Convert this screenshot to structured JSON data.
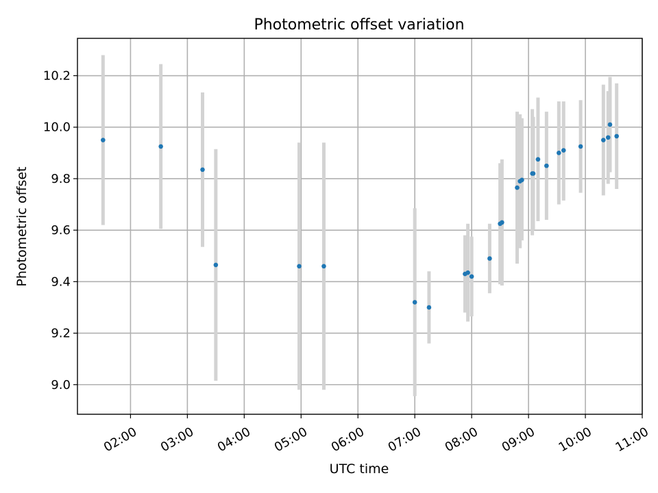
{
  "chart_data": {
    "type": "scatter",
    "title": "Photometric offset variation",
    "xlabel": "UTC time",
    "ylabel": "Photometric offset",
    "grid": true,
    "error_bars": true,
    "colors": {
      "marker": "#1f77b4",
      "error_bar": "#d3d3d3",
      "grid": "#b0b0b0"
    },
    "xlim": [
      "01:04",
      "11:00"
    ],
    "ylim": [
      8.885,
      10.345
    ],
    "x_ticks": [
      "02:00",
      "03:00",
      "04:00",
      "05:00",
      "06:00",
      "07:00",
      "08:00",
      "09:00",
      "10:00",
      "11:00"
    ],
    "y_ticks": [
      "9.0",
      "9.2",
      "9.4",
      "9.6",
      "9.8",
      "10.0",
      "10.2"
    ],
    "series": [
      {
        "points": [
          {
            "x": "01:31",
            "y": 9.95,
            "err_low": 9.62,
            "err_high": 10.28
          },
          {
            "x": "02:32",
            "y": 9.925,
            "err_low": 9.605,
            "err_high": 10.245
          },
          {
            "x": "03:16",
            "y": 9.835,
            "err_low": 9.535,
            "err_high": 10.135
          },
          {
            "x": "03:30",
            "y": 9.465,
            "err_low": 9.015,
            "err_high": 9.915
          },
          {
            "x": "04:58",
            "y": 9.46,
            "err_low": 8.98,
            "err_high": 9.94
          },
          {
            "x": "05:24",
            "y": 9.46,
            "err_low": 8.98,
            "err_high": 9.94
          },
          {
            "x": "07:00",
            "y": 9.32,
            "err_low": 8.955,
            "err_high": 9.685
          },
          {
            "x": "07:15",
            "y": 9.3,
            "err_low": 9.16,
            "err_high": 9.44
          },
          {
            "x": "07:53",
            "y": 9.43,
            "err_low": 9.28,
            "err_high": 9.58
          },
          {
            "x": "07:56",
            "y": 9.435,
            "err_low": 9.245,
            "err_high": 9.625
          },
          {
            "x": "08:00",
            "y": 9.42,
            "err_low": 9.265,
            "err_high": 9.575
          },
          {
            "x": "08:19",
            "y": 9.49,
            "err_low": 9.355,
            "err_high": 9.625
          },
          {
            "x": "08:30",
            "y": 9.625,
            "err_low": 9.39,
            "err_high": 9.86
          },
          {
            "x": "08:32",
            "y": 9.63,
            "err_low": 9.385,
            "err_high": 9.875
          },
          {
            "x": "08:48",
            "y": 9.765,
            "err_low": 9.47,
            "err_high": 10.06
          },
          {
            "x": "08:51",
            "y": 9.79,
            "err_low": 9.53,
            "err_high": 10.05
          },
          {
            "x": "08:53",
            "y": 9.795,
            "err_low": 9.56,
            "err_high": 10.035
          },
          {
            "x": "09:04",
            "y": 9.82,
            "err_low": 9.58,
            "err_high": 10.07
          },
          {
            "x": "09:05",
            "y": 9.82,
            "err_low": 9.6,
            "err_high": 10.04
          },
          {
            "x": "09:10",
            "y": 9.875,
            "err_low": 9.635,
            "err_high": 10.115
          },
          {
            "x": "09:19",
            "y": 9.85,
            "err_low": 9.64,
            "err_high": 10.06
          },
          {
            "x": "09:32",
            "y": 9.9,
            "err_low": 9.7,
            "err_high": 10.1
          },
          {
            "x": "09:37",
            "y": 9.91,
            "err_low": 9.715,
            "err_high": 10.1
          },
          {
            "x": "09:55",
            "y": 9.925,
            "err_low": 9.745,
            "err_high": 10.105
          },
          {
            "x": "10:19",
            "y": 9.95,
            "err_low": 9.735,
            "err_high": 10.165
          },
          {
            "x": "10:24",
            "y": 9.96,
            "err_low": 9.78,
            "err_high": 10.14
          },
          {
            "x": "10:26",
            "y": 10.01,
            "err_low": 9.825,
            "err_high": 10.195
          },
          {
            "x": "10:33",
            "y": 9.965,
            "err_low": 9.76,
            "err_high": 10.17
          }
        ]
      }
    ]
  }
}
